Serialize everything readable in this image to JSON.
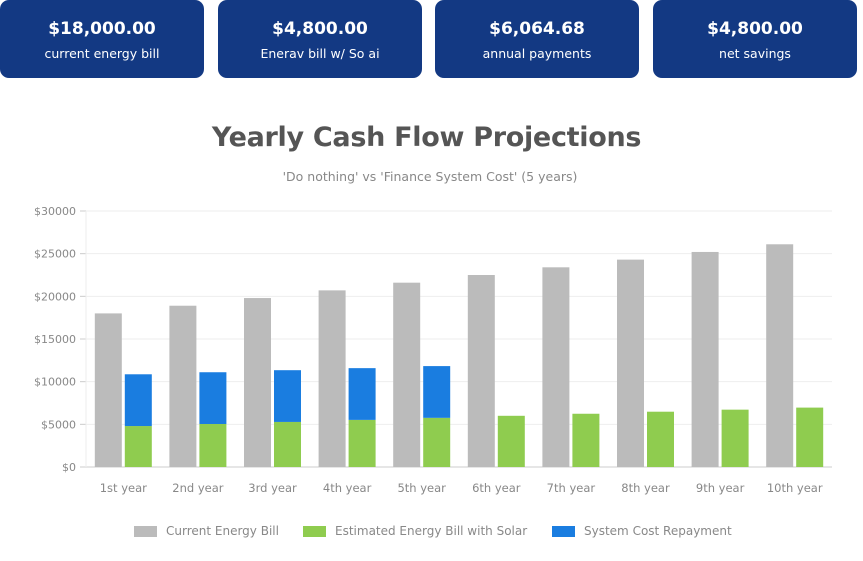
{
  "summary_cards": [
    {
      "amount": "$18,000.00",
      "label": "current energy bill"
    },
    {
      "amount": "$4,800.00",
      "label": "Enerav bill w/ So ai"
    },
    {
      "amount": "$6,064.68",
      "label": "annual payments"
    },
    {
      "amount": "$4,800.00",
      "label": "net savings"
    }
  ],
  "colors": {
    "card_bg": "#133983",
    "current_bill": "#bbbbbb",
    "solar_bill": "#8fcc4f",
    "repayment": "#1a7de0"
  },
  "chart_data": {
    "type": "bar",
    "title": "Yearly Cash Flow Projections",
    "subtitle": "'Do nothing' vs 'Finance System Cost' (5 years)",
    "xlabel": "",
    "ylabel": "",
    "ylim": [
      0,
      30000
    ],
    "yticks": [
      0,
      5000,
      10000,
      15000,
      20000,
      25000,
      30000
    ],
    "ytick_labels": [
      "$0",
      "$5000",
      "$10000",
      "$15000",
      "$20000",
      "$25000",
      "$30000"
    ],
    "grid": true,
    "legend_position": "bottom",
    "categories": [
      "1st year",
      "2nd year",
      "3rd year",
      "4th year",
      "5th year",
      "6th year",
      "7th year",
      "8th year",
      "9th year",
      "10th year"
    ],
    "series": [
      {
        "name": "Current Energy Bill",
        "stack": "a",
        "values": [
          18000,
          18900,
          19800,
          20700,
          21600,
          22500,
          23400,
          24300,
          25200,
          26100
        ]
      },
      {
        "name": "Estimated Energy Bill with Solar",
        "stack": "b",
        "values": [
          4800,
          5040,
          5280,
          5520,
          5760,
          6000,
          6240,
          6480,
          6720,
          6960
        ]
      },
      {
        "name": "System Cost Repayment",
        "stack": "b",
        "values": [
          6065,
          6065,
          6065,
          6065,
          6065,
          0,
          0,
          0,
          0,
          0
        ]
      }
    ]
  }
}
